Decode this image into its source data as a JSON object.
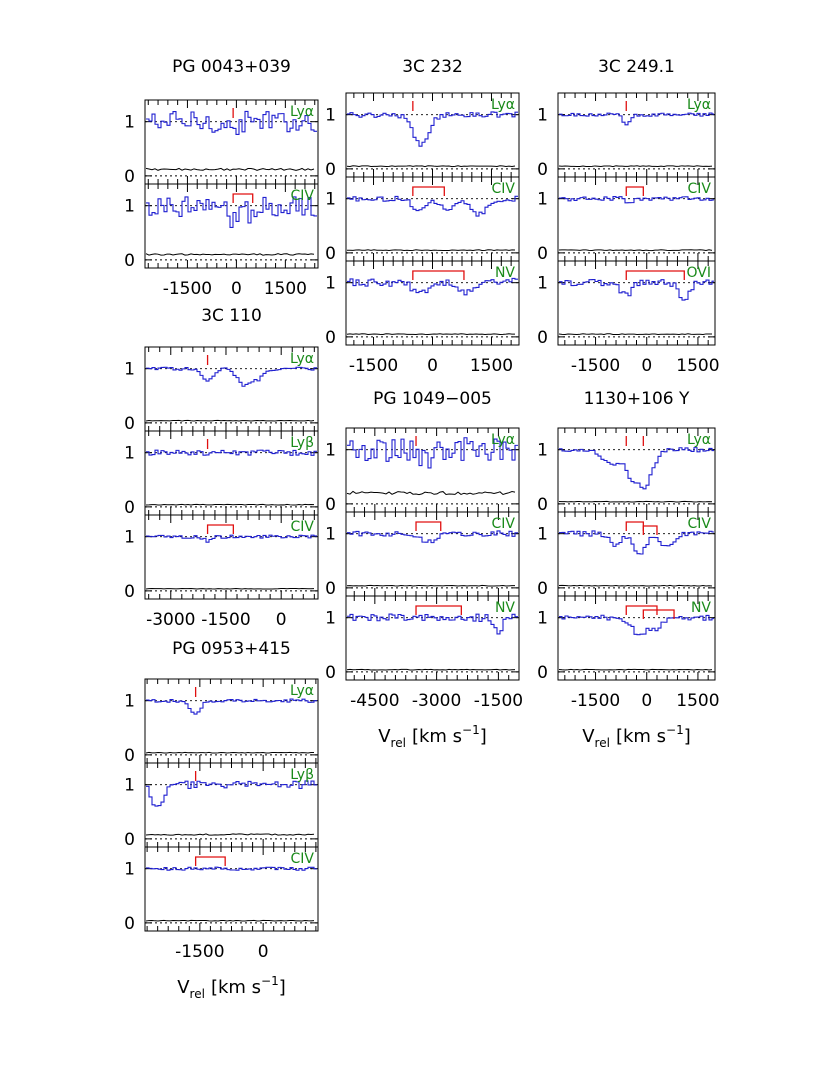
{
  "styles": {
    "spectrum_color": "#1f1fd0",
    "error_color": "#000000",
    "marker_color": "#e01010",
    "line_label_color": "#1a8a1a",
    "axis_color": "#000000"
  },
  "axis_label": {
    "main": "V",
    "sub": "rel",
    "unit": "[km  s",
    "exp": "−1",
    "close": "]"
  },
  "chart_data": [
    {
      "type": "line",
      "object": "PG  0043+039",
      "xlim": [
        -2800,
        2500
      ],
      "ylim": [
        -0.15,
        1.4
      ],
      "x_ticks": [
        -1500,
        0,
        1500
      ],
      "x_tick_labels": [
        "-1500",
        "0",
        "1500"
      ],
      "y_ticks": [
        0,
        1
      ],
      "y_tick_labels": [
        "0",
        "1"
      ],
      "show_x_axis_label": false,
      "panels": [
        {
          "line": "Lyα",
          "markers": [
            {
              "type": "tick",
              "x": -100
            }
          ],
          "noise": 0.2,
          "error": 0.12,
          "features": [
            [
              -100,
              0.15,
              150
            ]
          ]
        },
        {
          "line": "CIV",
          "markers": [
            {
              "type": "bracket",
              "x1": -100,
              "x2": 500
            }
          ],
          "noise": 0.2,
          "error": 0.1,
          "features": [
            [
              -100,
              0.3,
              150
            ],
            [
              500,
              0.25,
              150
            ]
          ]
        }
      ]
    },
    {
      "type": "line",
      "object": "3C  232",
      "xlim": [
        -2200,
        2200
      ],
      "ylim": [
        -0.15,
        1.4
      ],
      "x_ticks": [
        -1500,
        0,
        1500
      ],
      "x_tick_labels": [
        "-1500",
        "0",
        "1500"
      ],
      "y_ticks": [
        0,
        1
      ],
      "y_tick_labels": [
        "0",
        "1"
      ],
      "show_x_axis_label": false,
      "panels": [
        {
          "line": "Lyα",
          "markers": [
            {
              "type": "tick",
              "x": -500
            }
          ],
          "noise": 0.05,
          "error": 0.05,
          "features": [
            [
              -300,
              0.55,
              200
            ]
          ]
        },
        {
          "line": "CIV",
          "markers": [
            {
              "type": "bracket",
              "x1": -500,
              "x2": 300
            }
          ],
          "noise": 0.05,
          "error": 0.05,
          "features": [
            [
              -300,
              0.2,
              200
            ],
            [
              400,
              0.25,
              150
            ],
            [
              1200,
              0.3,
              200
            ]
          ]
        },
        {
          "line": "NV",
          "markers": [
            {
              "type": "bracket",
              "x1": -500,
              "x2": 800
            }
          ],
          "noise": 0.08,
          "error": 0.05,
          "features": [
            [
              -300,
              0.2,
              200
            ],
            [
              900,
              0.2,
              200
            ]
          ]
        }
      ]
    },
    {
      "type": "line",
      "object": "3C  249.1",
      "xlim": [
        -2600,
        2000
      ],
      "ylim": [
        -0.15,
        1.4
      ],
      "x_ticks": [
        -1500,
        0,
        1500
      ],
      "x_tick_labels": [
        "-1500",
        "0",
        "1500"
      ],
      "y_ticks": [
        0,
        1
      ],
      "y_tick_labels": [
        "0",
        "1"
      ],
      "show_x_axis_label": false,
      "panels": [
        {
          "line": "Lyα",
          "markers": [
            {
              "type": "tick",
              "x": -600
            }
          ],
          "noise": 0.03,
          "error": 0.05,
          "features": [
            [
              -600,
              0.2,
              100
            ]
          ]
        },
        {
          "line": "CIV",
          "markers": [
            {
              "type": "bracket",
              "x1": -600,
              "x2": -100
            }
          ],
          "noise": 0.04,
          "error": 0.05,
          "features": [
            [
              -500,
              0.1,
              100
            ]
          ]
        },
        {
          "line": "OVI",
          "markers": [
            {
              "type": "bracket",
              "x1": -600,
              "x2": 1100
            }
          ],
          "noise": 0.06,
          "error": 0.05,
          "features": [
            [
              -600,
              0.25,
              150
            ],
            [
              1100,
              0.3,
              150
            ]
          ]
        }
      ]
    },
    {
      "type": "line",
      "object": "3C  110",
      "xlim": [
        -3700,
        1000
      ],
      "ylim": [
        -0.15,
        1.4
      ],
      "x_ticks": [
        -3000,
        -1500,
        0
      ],
      "x_tick_labels": [
        "-3000",
        "-1500",
        "0"
      ],
      "y_ticks": [
        0,
        1
      ],
      "y_tick_labels": [
        "0",
        "1"
      ],
      "show_x_axis_label": false,
      "panels": [
        {
          "line": "Lyα",
          "markers": [
            {
              "type": "tick",
              "x": -2000
            }
          ],
          "noise": 0.03,
          "error": 0.04,
          "features": [
            [
              -2000,
              0.2,
              150
            ],
            [
              -1000,
              0.3,
              200
            ],
            [
              -600,
              0.15,
              150
            ]
          ]
        },
        {
          "line": "Lyβ",
          "markers": [
            {
              "type": "tick",
              "x": -2000
            }
          ],
          "noise": 0.05,
          "error": 0.04,
          "features": []
        },
        {
          "line": "CIV",
          "markers": [
            {
              "type": "bracket",
              "x1": -2000,
              "x2": -1300
            }
          ],
          "noise": 0.03,
          "error": 0.04,
          "features": [
            [
              -2000,
              0.08,
              100
            ]
          ]
        }
      ]
    },
    {
      "type": "line",
      "object": "PG  1049−005",
      "xlim": [
        -5200,
        -1000
      ],
      "ylim": [
        -0.15,
        1.4
      ],
      "x_ticks": [
        -4500,
        -3000,
        -1500
      ],
      "x_tick_labels": [
        "-4500",
        "-3000",
        "-1500"
      ],
      "y_ticks": [
        0,
        1
      ],
      "y_tick_labels": [
        "0",
        "1"
      ],
      "show_x_axis_label": true,
      "panels": [
        {
          "line": "Lyα",
          "markers": [
            {
              "type": "tick",
              "x": -3500
            }
          ],
          "noise": 0.22,
          "error": 0.2,
          "features": [
            [
              -3300,
              0.2,
              200
            ]
          ]
        },
        {
          "line": "CIV",
          "markers": [
            {
              "type": "bracket",
              "x1": -3500,
              "x2": -2900
            }
          ],
          "noise": 0.05,
          "error": 0.04,
          "features": [
            [
              -3200,
              0.15,
              150
            ]
          ]
        },
        {
          "line": "NV",
          "markers": [
            {
              "type": "bracket",
              "x1": -3500,
              "x2": -2400
            }
          ],
          "noise": 0.07,
          "error": 0.04,
          "features": [
            [
              -1500,
              0.25,
              100
            ]
          ]
        }
      ]
    },
    {
      "type": "line",
      "object": "1130+106  Y",
      "xlim": [
        -2600,
        2000
      ],
      "ylim": [
        -0.15,
        1.4
      ],
      "x_ticks": [
        -1500,
        0,
        1500
      ],
      "x_tick_labels": [
        "-1500",
        "0",
        "1500"
      ],
      "y_ticks": [
        0,
        1
      ],
      "y_tick_labels": [
        "0",
        "1"
      ],
      "show_x_axis_label": true,
      "panels": [
        {
          "line": "Lyα",
          "markers": [
            {
              "type": "tick",
              "x": -600
            },
            {
              "type": "tick",
              "x": -100
            }
          ],
          "noise": 0.04,
          "error": 0.04,
          "features": [
            [
              -1000,
              0.3,
              250
            ],
            [
              -100,
              0.7,
              250
            ],
            [
              -500,
              0.3,
              120
            ]
          ]
        },
        {
          "line": "CIV",
          "markers": [
            {
              "type": "bracket",
              "x1": -600,
              "x2": -100
            },
            {
              "type": "bracket",
              "x1": -100,
              "x2": 300
            }
          ],
          "noise": 0.05,
          "error": 0.04,
          "features": [
            [
              -200,
              0.35,
              200
            ],
            [
              600,
              0.25,
              200
            ],
            [
              -900,
              0.2,
              150
            ]
          ]
        },
        {
          "line": "NV",
          "markers": [
            {
              "type": "bracket",
              "x1": -600,
              "x2": 300
            },
            {
              "type": "bracket",
              "x1": -100,
              "x2": 800
            }
          ],
          "noise": 0.05,
          "error": 0.04,
          "features": [
            [
              -200,
              0.35,
              200
            ],
            [
              300,
              0.2,
              150
            ]
          ]
        }
      ]
    },
    {
      "type": "line",
      "object": "PG  0953+415",
      "xlim": [
        -2800,
        1300
      ],
      "ylim": [
        -0.15,
        1.4
      ],
      "x_ticks": [
        -1500,
        0
      ],
      "x_tick_labels": [
        "-1500",
        "0"
      ],
      "y_ticks": [
        0,
        1
      ],
      "y_tick_labels": [
        "0",
        "1"
      ],
      "show_x_axis_label": true,
      "panels": [
        {
          "line": "Lyα",
          "markers": [
            {
              "type": "tick",
              "x": -1600
            }
          ],
          "noise": 0.03,
          "error": 0.04,
          "features": [
            [
              -1600,
              0.25,
              120
            ]
          ]
        },
        {
          "line": "Lyβ",
          "markers": [
            {
              "type": "tick",
              "x": -1600
            }
          ],
          "noise": 0.07,
          "error": 0.08,
          "features": [
            [
              -2500,
              0.45,
              120
            ]
          ]
        },
        {
          "line": "CIV",
          "markers": [
            {
              "type": "bracket",
              "x1": -1600,
              "x2": -900
            }
          ],
          "noise": 0.03,
          "error": 0.04,
          "features": []
        }
      ]
    }
  ]
}
